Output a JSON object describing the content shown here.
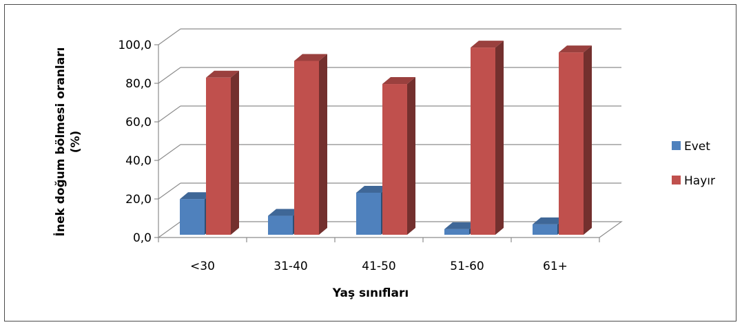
{
  "chart_data": {
    "type": "bar",
    "categories": [
      "<30",
      "31-40",
      "41-50",
      "51-60",
      "61+"
    ],
    "series": [
      {
        "name": "Evet",
        "values": [
          18.5,
          9.8,
          21.8,
          2.9,
          5.4
        ],
        "color": "#4f81bd"
      },
      {
        "name": "Hayır",
        "values": [
          81.5,
          90.2,
          78.2,
          97.1,
          94.6
        ],
        "color": "#c0504d"
      }
    ],
    "yticks": [
      "0,0",
      "20,0",
      "40,0",
      "60,0",
      "80,0",
      "100,0"
    ],
    "ylim": [
      0,
      100
    ],
    "xlabel": "Yaş sınıfları",
    "ylabel": [
      "İnek doğum bölmesi oranları",
      "(%)"
    ],
    "legend_position": "right",
    "grid": true,
    "style": "3d-column"
  }
}
